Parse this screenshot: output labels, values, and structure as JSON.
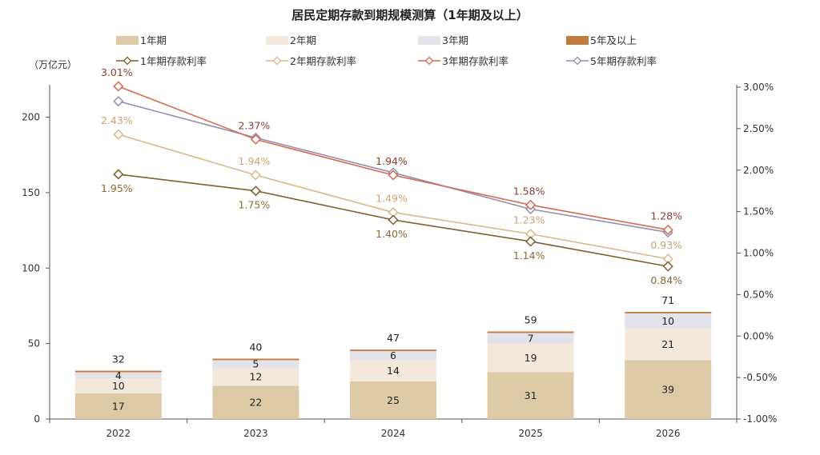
{
  "chart_data": {
    "type": "bar+line",
    "title": "居民定期存款到期规模测算（1年期及以上）",
    "left_unit": "（万亿元）",
    "categories": [
      "2022",
      "2023",
      "2024",
      "2025",
      "2026"
    ],
    "left_ylim": [
      0,
      220
    ],
    "left_ticks": [
      0,
      50,
      100,
      150,
      200
    ],
    "right_ylim": [
      -1.0,
      3.0
    ],
    "right_ticks": [
      "3.00%",
      "2.50%",
      "2.00%",
      "1.50%",
      "1.00%",
      "0.50%",
      "0.00%",
      "-0.50%",
      "-1.00%"
    ],
    "bar_series": [
      {
        "name": "1年期",
        "color": "#DECAA6",
        "values": [
          17,
          22,
          25,
          31,
          39
        ]
      },
      {
        "name": "2年期",
        "color": "#F3E8DC",
        "values": [
          10,
          12,
          14,
          19,
          21
        ]
      },
      {
        "name": "3年期",
        "color": "#E4E2EA",
        "values": [
          4,
          5,
          6,
          7,
          10
        ]
      },
      {
        "name": "5年及以上",
        "color": "#C27A3E",
        "values": [
          1,
          1,
          1,
          1,
          1
        ]
      }
    ],
    "bar_totals": [
      32,
      40,
      47,
      59,
      71
    ],
    "line_series": [
      {
        "name": "1年期存款利率",
        "color": "#7E5F2D",
        "label_color": "#8A6A34",
        "values": [
          1.95,
          1.75,
          1.4,
          1.14,
          0.84
        ],
        "labels": [
          "1.95%",
          "1.75%",
          "1.40%",
          "1.14%",
          "0.84%"
        ],
        "label_pos": "below"
      },
      {
        "name": "2年期存款利率",
        "color": "#D8B98A",
        "label_color": "#C9A56F",
        "values": [
          2.43,
          1.94,
          1.49,
          1.23,
          0.93
        ],
        "labels": [
          "2.43%",
          "1.94%",
          "1.49%",
          "1.23%",
          "0.93%"
        ],
        "label_pos": "above"
      },
      {
        "name": "3年期存款利率",
        "color": "#D66A52",
        "label_color": "#8A3E30",
        "values": [
          3.01,
          2.37,
          1.94,
          1.58,
          1.28
        ],
        "labels": [
          "3.01%",
          "2.37%",
          "1.94%",
          "1.58%",
          "1.28%"
        ],
        "label_pos": "above"
      },
      {
        "name": "5年期存款利率",
        "color": "#9090B0",
        "label_color": "#7878A0",
        "values": [
          2.83,
          2.39,
          1.97,
          1.53,
          1.25
        ],
        "labels": [],
        "label_pos": "none"
      }
    ]
  }
}
